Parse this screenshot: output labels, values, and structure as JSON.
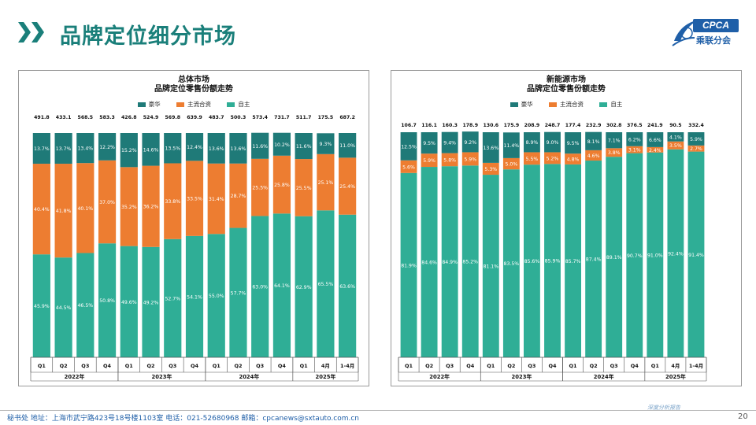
{
  "header": {
    "title": "品牌定位细分市场"
  },
  "logo": {
    "badge": "CPCA",
    "subtitle": "乘联分会"
  },
  "footer": {
    "contact": "秘书处  地址：上海市武宁路423号18号楼1103室  电话：021-52680968  邮箱：cpcanews@sxtauto.com.cn",
    "tagline": "深度分析报告",
    "page": "20"
  },
  "colors": {
    "luxury": "#1f7a78",
    "joint": "#ed7d31",
    "domestic": "#2fae96",
    "accent": "#1a7f7a"
  },
  "chart_data": [
    {
      "type": "bar",
      "stacked": "percent",
      "title": "总体市场",
      "subtitle": "品牌定位零售份额走势",
      "legend_position": "top",
      "categories": [
        "Q1",
        "Q2",
        "Q3",
        "Q4",
        "Q1",
        "Q2",
        "Q3",
        "Q4",
        "Q1",
        "Q2",
        "Q3",
        "Q4",
        "Q1",
        "4月",
        "1-4月"
      ],
      "groups": [
        {
          "label": "2022年",
          "count": 4
        },
        {
          "label": "2023年",
          "count": 4
        },
        {
          "label": "2024年",
          "count": 4
        },
        {
          "label": "2025年",
          "count": 3
        }
      ],
      "totals": [
        "491.8",
        "433.1",
        "568.5",
        "583.3",
        "426.8",
        "524.9",
        "569.8",
        "639.9",
        "483.7",
        "500.3",
        "573.4",
        "731.7",
        "511.7",
        "175.5",
        "687.2"
      ],
      "series": [
        {
          "name": "自主",
          "key": "domestic",
          "values": [
            45.9,
            44.5,
            46.5,
            50.8,
            49.6,
            49.2,
            52.7,
            54.1,
            55.0,
            57.7,
            63.0,
            64.1,
            62.9,
            65.5,
            63.6
          ],
          "labels": [
            "45.9%",
            "44.5%",
            "46.5%",
            "50.8%",
            "49.6%",
            "49.2%",
            "52.7%",
            "54.1%",
            "55.0%",
            "57.7%",
            "63.0%",
            "64.1%",
            "62.9%",
            "65.5%",
            "63.6%"
          ]
        },
        {
          "name": "主流合资",
          "key": "joint",
          "values": [
            40.4,
            41.8,
            40.1,
            37.0,
            35.2,
            36.2,
            33.8,
            33.5,
            31.4,
            28.7,
            25.5,
            25.8,
            25.5,
            25.1,
            25.4
          ],
          "labels": [
            "40.4%",
            "41.8%",
            "40.1%",
            "37.0%",
            "35.2%",
            "36.2%",
            "33.8%",
            "33.5%",
            "31.4%",
            "28.7%",
            "25.5%",
            "25.8%",
            "25.5%",
            "25.1%",
            "25.4%"
          ]
        },
        {
          "name": "豪华",
          "key": "luxury",
          "values": [
            13.7,
            13.7,
            13.4,
            12.2,
            15.2,
            14.6,
            13.5,
            12.4,
            13.6,
            13.6,
            11.6,
            10.2,
            11.6,
            9.3,
            11.0
          ],
          "labels": [
            "13.7%",
            "13.7%",
            "13.4%",
            "12.2%",
            "15.2%",
            "14.6%",
            "13.5%",
            "12.4%",
            "13.6%",
            "13.6%",
            "11.6%",
            "10.2%",
            "11.6%",
            "9.3%",
            "11.0%"
          ]
        }
      ],
      "ylim": [
        0,
        100
      ],
      "grid": false
    },
    {
      "type": "bar",
      "stacked": "percent",
      "title": "新能源市场",
      "subtitle": "品牌定位零售份额走势",
      "legend_position": "top",
      "categories": [
        "Q1",
        "Q2",
        "Q3",
        "Q4",
        "Q1",
        "Q2",
        "Q3",
        "Q4",
        "Q1",
        "Q2",
        "Q3",
        "Q4",
        "Q1",
        "4月",
        "1-4月"
      ],
      "groups": [
        {
          "label": "2022年",
          "count": 4
        },
        {
          "label": "2023年",
          "count": 4
        },
        {
          "label": "2024年",
          "count": 4
        },
        {
          "label": "2025年",
          "count": 3
        }
      ],
      "totals": [
        "106.7",
        "116.1",
        "160.3",
        "178.9",
        "130.6",
        "175.9",
        "208.9",
        "248.7",
        "177.4",
        "232.9",
        "302.8",
        "376.5",
        "241.9",
        "90.5",
        "332.4"
      ],
      "series": [
        {
          "name": "自主",
          "key": "domestic",
          "values": [
            81.9,
            84.6,
            84.9,
            85.2,
            81.1,
            83.5,
            85.6,
            85.9,
            85.7,
            87.4,
            89.1,
            90.7,
            91.0,
            92.4,
            91.4
          ],
          "labels": [
            "81.9%",
            "84.6%",
            "84.9%",
            "85.2%",
            "81.1%",
            "83.5%",
            "85.6%",
            "85.9%",
            "85.7%",
            "87.4%",
            "89.1%",
            "90.7%",
            "91.0%",
            "92.4%",
            "91.4%"
          ]
        },
        {
          "name": "主流合资",
          "key": "joint",
          "values": [
            5.6,
            5.9,
            5.8,
            5.9,
            5.3,
            5.0,
            5.5,
            5.2,
            4.8,
            4.6,
            3.8,
            3.1,
            2.4,
            3.5,
            2.7
          ],
          "labels": [
            "5.6%",
            "5.9%",
            "5.8%",
            "5.9%",
            "5.3%",
            "5.0%",
            "5.5%",
            "5.2%",
            "4.8%",
            "4.6%",
            "3.8%",
            "3.1%",
            "2.4%",
            "3.5%",
            "2.7%"
          ]
        },
        {
          "name": "豪华",
          "key": "luxury",
          "values": [
            12.5,
            9.5,
            9.4,
            9.2,
            13.6,
            11.4,
            8.9,
            9.0,
            9.5,
            8.1,
            7.1,
            6.2,
            6.6,
            4.1,
            5.9
          ],
          "labels": [
            "12.5%",
            "9.5%",
            "9.4%",
            "9.2%",
            "13.6%",
            "11.4%",
            "8.9%",
            "9.0%",
            "9.5%",
            "8.1%",
            "7.1%",
            "6.2%",
            "6.6%",
            "4.1%",
            "5.9%"
          ]
        }
      ],
      "ylim": [
        0,
        100
      ],
      "grid": false
    }
  ]
}
